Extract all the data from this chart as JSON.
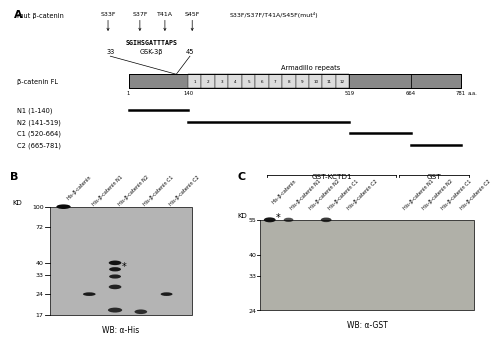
{
  "panel_A": {
    "mut_label": "mut β-catenin",
    "mutations": [
      "S33F",
      "S37F",
      "T41A",
      "S45F",
      "S33F/S37F/T41A/S45F(mut⁴)"
    ],
    "sequence": "SGIHSGATTTAPS",
    "gsk": "GSK-3β",
    "pos33": "33",
    "pos45": "45",
    "armadillo": "Armadillo repeats",
    "protein_label": "β-catenin FL",
    "aa_label": "a.a.",
    "pos_labels": [
      "1",
      "140",
      "519",
      "664",
      "781"
    ],
    "frag_names": [
      "N1 (1-140)",
      "N2 (141-519)",
      "C1 (520-664)",
      "C2 (665-781)"
    ],
    "n_repeats": 12,
    "dark_color": "#888888",
    "light_color": "#dddddd"
  },
  "panel_B": {
    "title": "B",
    "lanes": [
      "His-β-catenin",
      "His-β-catenin N1",
      "His-β-catenin N2",
      "His-β-catenin C1",
      "His-β-catenin C2"
    ],
    "kd_marks": [
      100,
      72,
      40,
      33,
      24,
      17
    ],
    "wb_label": "WB: α-His",
    "gel_color": "#b4b4b4"
  },
  "panel_C": {
    "title": "C",
    "group1_label": "GST-KCTD1",
    "group2_label": "GST",
    "lanes_g1": [
      "His-β-catenin",
      "His-β-catenin N1",
      "His-β-catenin N2",
      "His-β-catenin C1",
      "His-β-catenin C2"
    ],
    "lanes_g2": [
      "His-β-catenin N1",
      "His-β-catenin N2",
      "His-β-catenin C1",
      "His-β-catenin C2"
    ],
    "kd_marks": [
      55,
      40,
      33,
      24
    ],
    "wb_label": "WB: α-GST",
    "gel_color": "#b0b0a8"
  }
}
